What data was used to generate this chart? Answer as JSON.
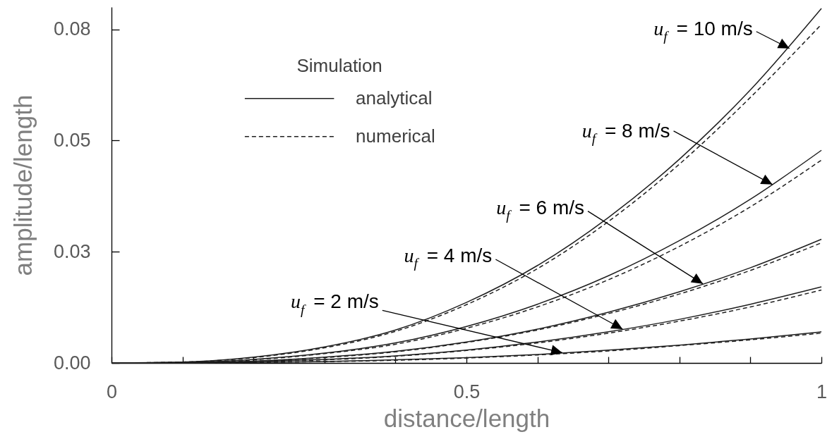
{
  "chart_data": {
    "type": "line",
    "xlabel": "distance/length",
    "ylabel": "amplitude/length",
    "legend_title": "Simulation",
    "legend": "top left",
    "x": [
      0,
      0.1,
      0.2,
      0.3,
      0.4,
      0.5,
      0.6,
      0.7,
      0.8,
      0.9,
      1
    ],
    "xlim": [
      0,
      1
    ],
    "xticks": [
      0,
      {
        "value": 0.1,
        "label": null
      },
      {
        "value": 0.2,
        "label": null
      },
      {
        "value": 0.3,
        "label": null
      },
      {
        "value": 0.4,
        "label": null
      },
      0.5,
      {
        "value": 0.6,
        "label": null
      },
      {
        "value": 0.7,
        "label": null
      },
      {
        "value": 0.8,
        "label": null
      },
      {
        "value": 0.9,
        "label": null
      },
      1
    ],
    "ylim": [
      0,
      0.08
    ],
    "yticks": [
      {
        "value": 0,
        "label": "0.00"
      },
      {
        "value": 0.025,
        "label": "0.03"
      },
      0.05,
      {
        "value": 0.075,
        "label": "0.08"
      }
    ],
    "series": [
      {
        "name": "analytical",
        "color": "#1f1f1f",
        "line_style": "solid",
        "values": [
          0,
          0.0002,
          0.0013,
          0.0036,
          0.0074,
          0.0136,
          0.0219,
          0.0327,
          0.0458,
          0.0614,
          0.0797
        ]
      },
      {
        "name": "numerical",
        "color": "#1f1f1f",
        "line_style": "dashed",
        "values": [
          0,
          0.0002,
          0.0012,
          0.0034,
          0.0071,
          0.0131,
          0.0212,
          0.0318,
          0.0447,
          0.0597,
          0.0761
        ]
      },
      {
        "color": "#1f1f1f",
        "line_style": "solid",
        "values": [
          0,
          0.0001,
          0.0008,
          0.0022,
          0.0045,
          0.0082,
          0.0132,
          0.0196,
          0.0275,
          0.0368,
          0.0478
        ]
      },
      {
        "color": "#1f1f1f",
        "line_style": "dashed",
        "values": [
          0,
          0.0001,
          0.0007,
          0.0021,
          0.0042,
          0.0078,
          0.0126,
          0.0187,
          0.0262,
          0.0351,
          0.0456
        ]
      },
      {
        "color": "#1f1f1f",
        "line_style": "solid",
        "values": [
          0,
          0.0001,
          0.0004,
          0.0013,
          0.0026,
          0.0047,
          0.0076,
          0.0114,
          0.016,
          0.0214,
          0.0278
        ]
      },
      {
        "color": "#1f1f1f",
        "line_style": "dashed",
        "values": [
          0,
          0.0001,
          0.0004,
          0.0012,
          0.0025,
          0.0046,
          0.0074,
          0.0111,
          0.0155,
          0.0208,
          0.027
        ]
      },
      {
        "color": "#1f1f1f",
        "line_style": "solid",
        "values": [
          0,
          0,
          0.0003,
          0.0008,
          0.0016,
          0.0029,
          0.0047,
          0.007,
          0.0098,
          0.0132,
          0.0171
        ]
      },
      {
        "color": "#1f1f1f",
        "line_style": "dashed",
        "values": [
          0,
          0,
          0.0003,
          0.0007,
          0.0015,
          0.0028,
          0.0045,
          0.0067,
          0.0094,
          0.0126,
          0.0164
        ]
      },
      {
        "color": "#1f1f1f",
        "line_style": "solid",
        "values": [
          0,
          0,
          0.0001,
          0.0003,
          0.0007,
          0.0012,
          0.0019,
          0.0029,
          0.004,
          0.0054,
          0.007
        ]
      },
      {
        "color": "#1f1f1f",
        "line_style": "dashed",
        "values": [
          0,
          0,
          0.0001,
          0.0003,
          0.0006,
          0.0011,
          0.0018,
          0.0027,
          0.0039,
          0.0052,
          0.0067
        ]
      }
    ],
    "annotations": [
      {
        "text": "u$_{f}$ = 10 m/s",
        "x": 0.955,
        "y": 0.0707
      },
      {
        "text": "u$_{f}$ = 8 m/s",
        "x": 0.931,
        "y": 0.0401
      },
      {
        "text": "u$_{f}$ = 6 m/s",
        "x": 0.833,
        "y": 0.0178
      },
      {
        "text": "u$_{f}$ = 4 m/s",
        "x": 0.72,
        "y": 0.0076
      },
      {
        "text": "u$_{f}$ = 2 m/s",
        "x": 0.635,
        "y": 0.0023
      }
    ]
  }
}
